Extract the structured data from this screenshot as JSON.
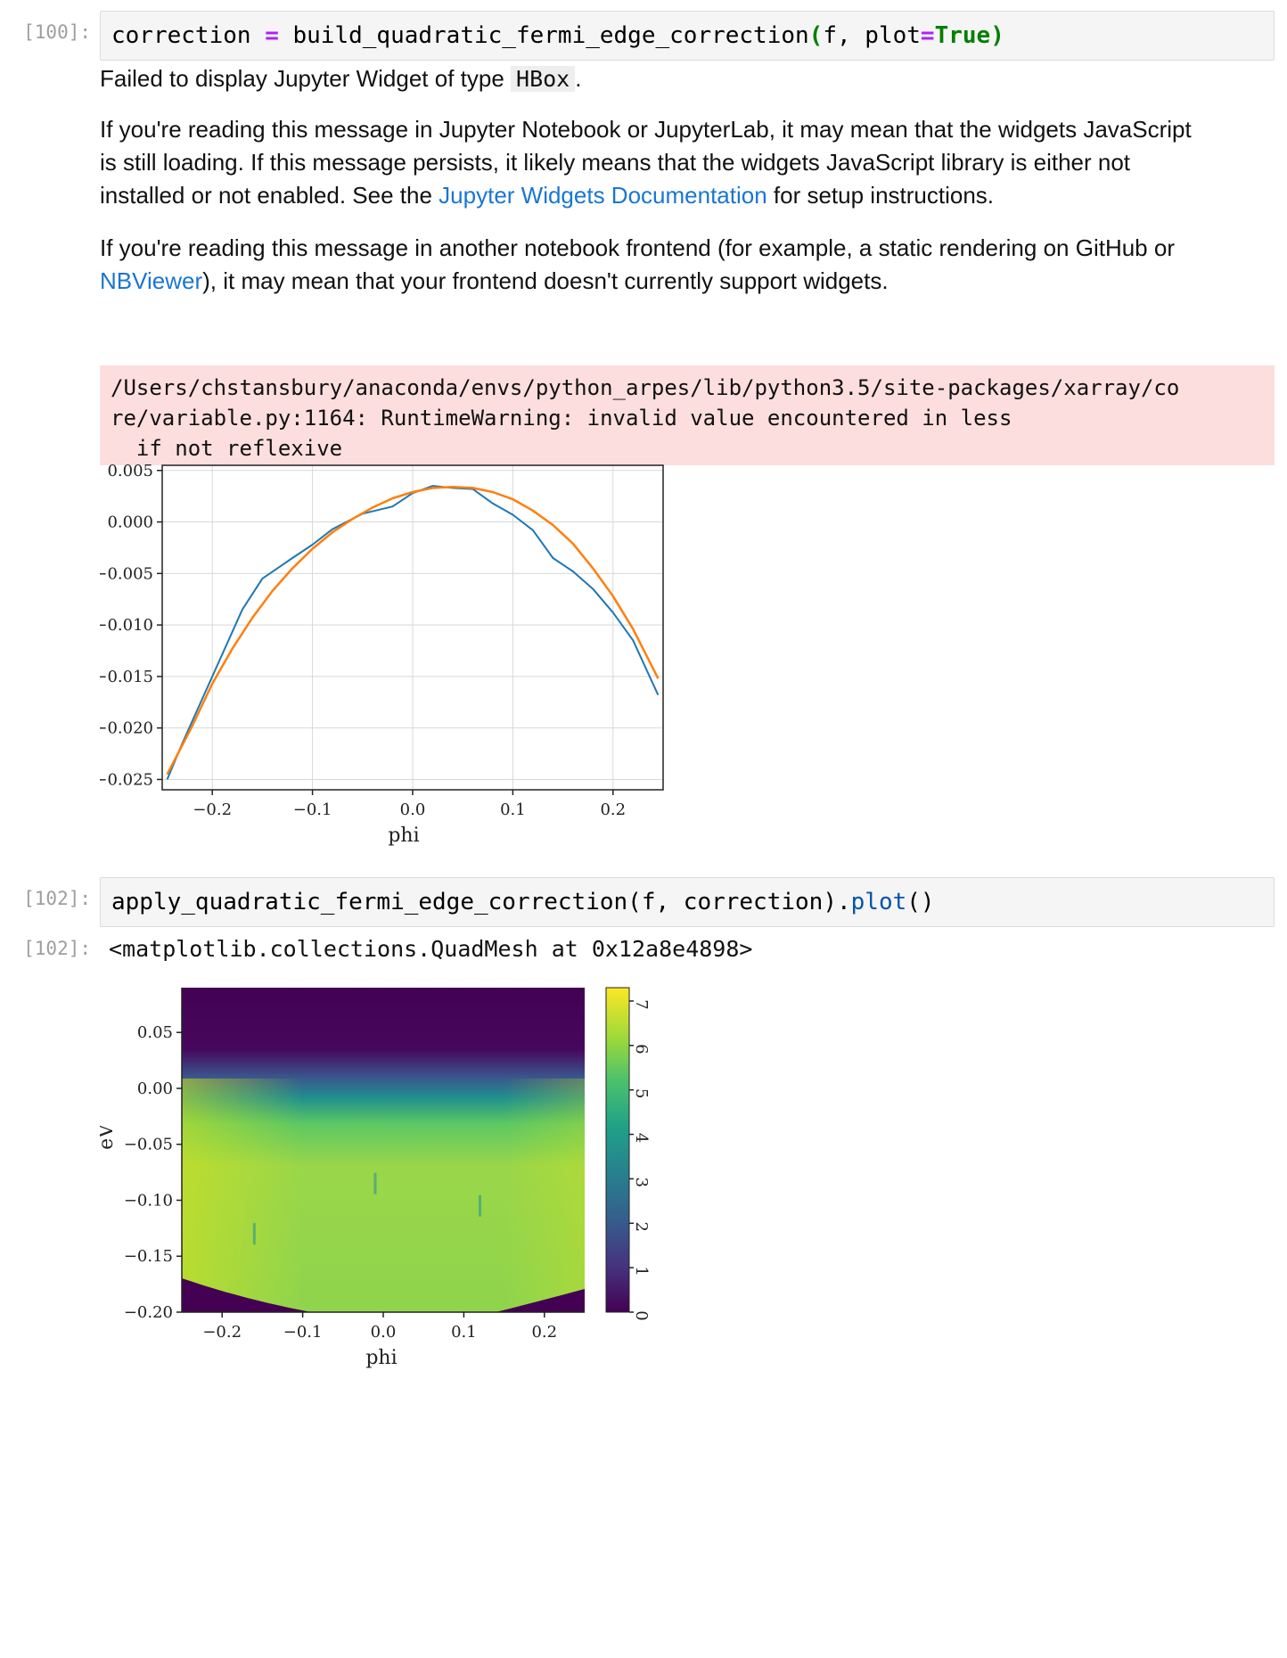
{
  "cell1": {
    "prompt": "[100]:",
    "code_parts": [
      "correction ",
      "=",
      " build_quadratic_fermi_edge_correction",
      "(",
      "f, plot",
      "=",
      "True",
      ")"
    ]
  },
  "widget_message": {
    "line1_pre": "Failed to display Jupyter Widget of type ",
    "line1_code": "HBox",
    "line1_post": ".",
    "para2_pre": "If you're reading this message in Jupyter Notebook or JupyterLab, it may mean that the widgets JavaScript is still loading. If this message persists, it likely means that the widgets JavaScript library is either not installed or not enabled. See the ",
    "para2_link": "Jupyter Widgets Documentation",
    "para2_post": " for setup instructions.",
    "para3_pre": "If you're reading this message in another notebook frontend (for example, a static rendering on GitHub or ",
    "para3_link": "NBViewer",
    "para3_post": "), it may mean that your frontend doesn't currently support widgets."
  },
  "stderr": {
    "line1": "/Users/chstansbury/anaconda/envs/python_arpes/lib/python3.5/site-packages/xarray/co",
    "line2": "re/variable.py:1164: RuntimeWarning: invalid value encountered in less",
    "line3": "  if not reflexive"
  },
  "cell2": {
    "prompt": "[102]:",
    "code_parts": [
      "apply_quadratic_fermi_edge_correction(f, correction).",
      "plot",
      "()"
    ]
  },
  "output2": {
    "prompt": "[102]:",
    "text": "<matplotlib.collections.QuadMesh at 0x12a8e4898>"
  },
  "chart_data": [
    {
      "type": "line",
      "xlabel": "phi",
      "ylabel": "",
      "xlim": [
        -0.25,
        0.25
      ],
      "ylim": [
        -0.026,
        0.0055
      ],
      "x_ticks": [
        -0.2,
        -0.1,
        0.0,
        0.1,
        0.2
      ],
      "x_tick_labels": [
        "−0.2",
        "−0.1",
        "0.0",
        "0.1",
        "0.2"
      ],
      "y_ticks": [
        0.005,
        0.0,
        -0.005,
        -0.01,
        -0.015,
        -0.02,
        -0.025
      ],
      "y_tick_labels": [
        "0.005",
        "0.000",
        "−0.005",
        "−0.010",
        "−0.015",
        "−0.020",
        "−0.025"
      ],
      "grid": true,
      "colors": {
        "data": "#1f77b4",
        "fit": "#ff7f0e"
      },
      "series": [
        {
          "x": [
            -0.245,
            -0.23,
            -0.2,
            -0.17,
            -0.15,
            -0.12,
            -0.1,
            -0.08,
            -0.05,
            -0.02,
            0.0,
            0.02,
            0.04,
            0.06,
            0.08,
            0.1,
            0.12,
            0.14,
            0.16,
            0.18,
            0.2,
            0.22,
            0.245
          ],
          "y": [
            -0.025,
            -0.0215,
            -0.015,
            -0.0085,
            -0.0055,
            -0.0035,
            -0.0022,
            -0.0007,
            0.0008,
            0.0015,
            0.0028,
            0.0035,
            0.0033,
            0.0032,
            0.0018,
            0.0007,
            -0.0008,
            -0.0035,
            -0.0048,
            -0.0065,
            -0.0088,
            -0.0115,
            -0.0168
          ]
        },
        {
          "x": [
            -0.245,
            -0.22,
            -0.2,
            -0.18,
            -0.16,
            -0.14,
            -0.12,
            -0.1,
            -0.08,
            -0.06,
            -0.04,
            -0.02,
            0.0,
            0.02,
            0.04,
            0.06,
            0.08,
            0.1,
            0.12,
            0.14,
            0.16,
            0.18,
            0.2,
            0.22,
            0.245
          ],
          "y": [
            -0.0245,
            -0.0198,
            -0.0157,
            -0.0123,
            -0.0093,
            -0.0067,
            -0.0045,
            -0.0026,
            -0.001,
            0.0003,
            0.0014,
            0.0023,
            0.0029,
            0.0033,
            0.0034,
            0.0033,
            0.0029,
            0.0022,
            0.0011,
            -0.0003,
            -0.0021,
            -0.0045,
            -0.0072,
            -0.0104,
            -0.0152
          ]
        }
      ]
    },
    {
      "type": "heatmap",
      "xlabel": "phi",
      "ylabel": "eV",
      "xlim": [
        -0.25,
        0.25
      ],
      "ylim": [
        -0.2,
        0.09
      ],
      "x_ticks": [
        -0.2,
        -0.1,
        0.0,
        0.1,
        0.2
      ],
      "x_tick_labels": [
        "−0.2",
        "−0.1",
        "0.0",
        "0.1",
        "0.2"
      ],
      "y_ticks": [
        0.05,
        0.0,
        -0.05,
        -0.1,
        -0.15,
        -0.2
      ],
      "y_tick_labels": [
        "0.05",
        "0.00",
        "−0.05",
        "−0.10",
        "−0.15",
        "−0.20"
      ],
      "colorbar_ticks": [
        0,
        1,
        2,
        3,
        4,
        5,
        6,
        7
      ],
      "colorbar_range": [
        0,
        7.3
      ],
      "colormap": "viridis"
    }
  ]
}
